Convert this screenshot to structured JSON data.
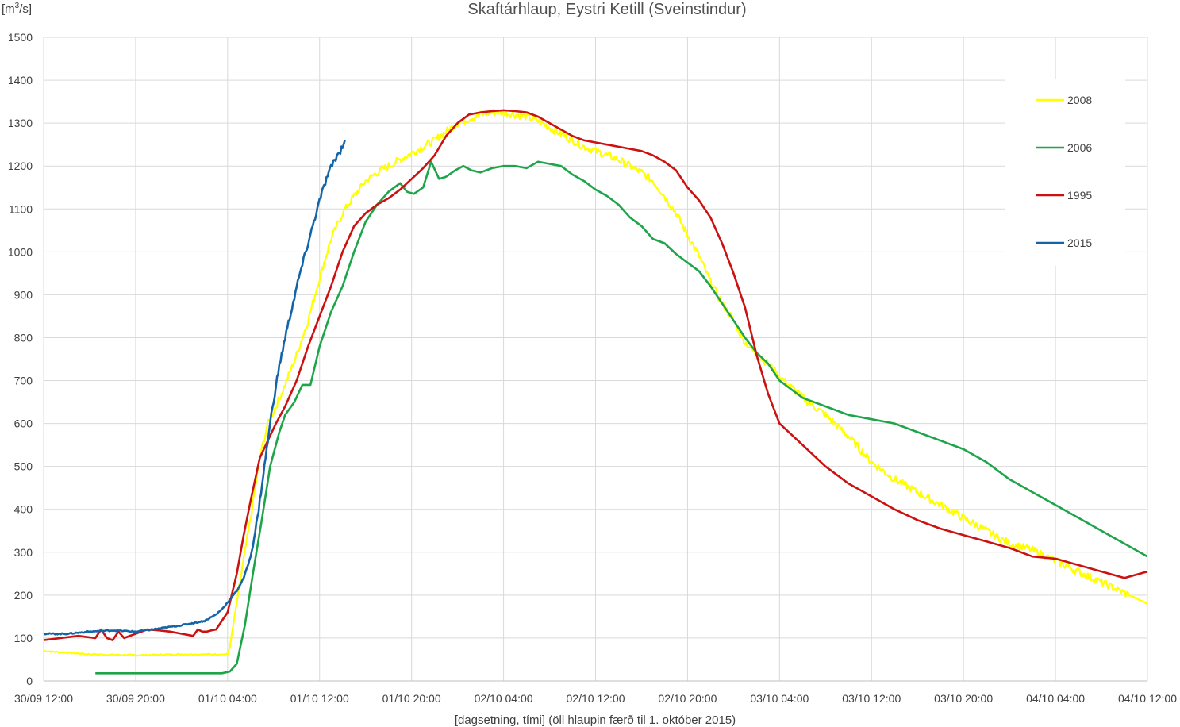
{
  "chart_data": {
    "type": "line",
    "title": "Skaftárhlaup, Eystri Ketill (Sveinstindur)",
    "ylabel_prefix": "[m",
    "ylabel_sup": "3",
    "ylabel_suffix": "/s]",
    "xlabel": "[dagsetning, tími] (öll hlaupin færð til 1. október 2015)",
    "xlim_hours": [
      0,
      96
    ],
    "ylim": [
      0,
      1500
    ],
    "y_ticks": [
      0,
      100,
      200,
      300,
      400,
      500,
      600,
      700,
      800,
      900,
      1000,
      1100,
      1200,
      1300,
      1400,
      1500
    ],
    "x_tick_labels": [
      "30/09 12:00",
      "30/09 20:00",
      "01/10 04:00",
      "01/10 12:00",
      "01/10 20:00",
      "02/10 04:00",
      "02/10 12:00",
      "02/10 20:00",
      "03/10 04:00",
      "03/10 12:00",
      "03/10 20:00",
      "04/10 04:00",
      "04/10 12:00"
    ],
    "grid": true,
    "legend_position": "right",
    "series": [
      {
        "name": "2008",
        "color": "#ffff00",
        "noisy": true,
        "x": [
          0,
          4,
          8,
          12,
          16,
          16.2,
          16.6,
          17.2,
          18,
          18.8,
          19.5,
          20.2,
          21,
          22,
          23,
          24,
          25,
          26,
          27,
          28,
          29,
          30,
          31,
          32,
          33,
          34,
          35,
          36,
          37,
          38,
          39,
          40,
          41,
          42,
          43,
          44,
          45,
          46,
          47,
          48,
          49,
          50,
          51,
          52,
          53,
          54,
          55,
          56,
          57,
          58,
          59,
          60,
          61,
          62,
          63,
          64,
          66,
          68,
          70,
          72,
          74,
          76,
          78,
          80,
          82,
          84,
          86,
          88,
          90,
          92,
          94,
          96
        ],
        "y": [
          70,
          62,
          60,
          62,
          62,
          80,
          150,
          250,
          380,
          520,
          600,
          640,
          690,
          760,
          840,
          940,
          1030,
          1090,
          1130,
          1165,
          1185,
          1200,
          1215,
          1230,
          1245,
          1260,
          1280,
          1300,
          1310,
          1320,
          1325,
          1325,
          1320,
          1315,
          1305,
          1290,
          1275,
          1260,
          1245,
          1235,
          1225,
          1215,
          1200,
          1185,
          1165,
          1130,
          1090,
          1040,
          990,
          930,
          880,
          840,
          790,
          760,
          740,
          710,
          660,
          620,
          570,
          510,
          470,
          440,
          410,
          380,
          350,
          320,
          305,
          280,
          255,
          230,
          205,
          180
        ]
      },
      {
        "name": "2006",
        "color": "#1ea54a",
        "noisy": false,
        "x": [
          4.5,
          8,
          12,
          15.5,
          16.2,
          16.8,
          17.5,
          18.2,
          19,
          19.7,
          20.5,
          21,
          21.8,
          22.5,
          23.2,
          24,
          25,
          26,
          27,
          28,
          29,
          30,
          31,
          31.6,
          32.2,
          33,
          33.7,
          34.4,
          35,
          35.8,
          36.5,
          37.2,
          38,
          39,
          40,
          41,
          42,
          43,
          44,
          45,
          46,
          47,
          48,
          49,
          50,
          51,
          52,
          53,
          54,
          55,
          56,
          57,
          58,
          59,
          60,
          61,
          62,
          63,
          64,
          66,
          68,
          70,
          72,
          74,
          76,
          78,
          80,
          82,
          84,
          86,
          88,
          90,
          92,
          94,
          96
        ],
        "y": [
          18,
          18,
          18,
          18,
          22,
          40,
          130,
          250,
          380,
          500,
          580,
          620,
          650,
          690,
          690,
          780,
          860,
          920,
          1000,
          1070,
          1110,
          1140,
          1160,
          1140,
          1135,
          1150,
          1210,
          1170,
          1175,
          1190,
          1200,
          1190,
          1185,
          1195,
          1200,
          1200,
          1195,
          1210,
          1205,
          1200,
          1180,
          1165,
          1145,
          1130,
          1110,
          1080,
          1060,
          1030,
          1020,
          995,
          975,
          955,
          920,
          880,
          840,
          800,
          765,
          740,
          700,
          660,
          640,
          620,
          610,
          600,
          580,
          560,
          540,
          510,
          470,
          440,
          410,
          380,
          350,
          320,
          290
        ]
      },
      {
        "name": "1995",
        "color": "#cc1111",
        "noisy": false,
        "x": [
          0,
          3,
          4.5,
          5,
          5.5,
          6,
          6.5,
          7,
          8,
          9,
          10,
          11,
          12,
          13,
          13.4,
          13.8,
          14.2,
          14.6,
          15,
          16,
          16.8,
          17.4,
          18,
          18.8,
          19.5,
          20.2,
          21,
          22,
          23,
          24,
          25,
          26,
          27,
          28,
          29,
          30,
          31,
          32,
          33,
          34,
          35,
          36,
          37,
          38,
          39,
          40,
          41,
          42,
          43,
          44,
          45,
          46,
          47,
          48,
          49,
          50,
          51,
          52,
          53,
          54,
          55,
          56,
          57,
          58,
          59,
          60,
          61,
          62,
          63,
          64,
          66,
          68,
          70,
          72,
          74,
          76,
          78,
          80,
          82,
          84,
          86,
          88,
          90,
          92,
          94,
          96
        ],
        "y": [
          95,
          105,
          100,
          120,
          100,
          95,
          115,
          100,
          110,
          120,
          118,
          115,
          110,
          105,
          120,
          115,
          115,
          118,
          120,
          160,
          250,
          340,
          420,
          520,
          560,
          600,
          640,
          700,
          780,
          850,
          920,
          1000,
          1060,
          1090,
          1110,
          1125,
          1145,
          1170,
          1195,
          1225,
          1270,
          1300,
          1320,
          1325,
          1328,
          1330,
          1328,
          1325,
          1315,
          1300,
          1285,
          1270,
          1260,
          1255,
          1250,
          1245,
          1240,
          1235,
          1225,
          1210,
          1190,
          1150,
          1120,
          1080,
          1020,
          950,
          870,
          760,
          670,
          600,
          550,
          500,
          460,
          430,
          400,
          375,
          355,
          340,
          325,
          310,
          290,
          285,
          270,
          255,
          240,
          255
        ]
      },
      {
        "name": "2015",
        "color": "#1464a8",
        "noisy": true,
        "x": [
          0,
          2,
          4,
          6,
          8,
          10,
          12,
          14,
          15,
          15.6,
          16.2,
          16.8,
          17.4,
          18,
          18.6,
          19.2,
          19.8,
          20.4,
          21,
          21.6,
          22.2,
          22.8,
          23.4,
          24,
          24.6,
          25.2,
          25.8,
          26.2
        ],
        "y": [
          110,
          110,
          115,
          118,
          115,
          122,
          130,
          140,
          155,
          170,
          190,
          210,
          240,
          290,
          380,
          500,
          620,
          720,
          800,
          870,
          940,
          1000,
          1060,
          1120,
          1170,
          1210,
          1235,
          1260
        ]
      }
    ]
  }
}
